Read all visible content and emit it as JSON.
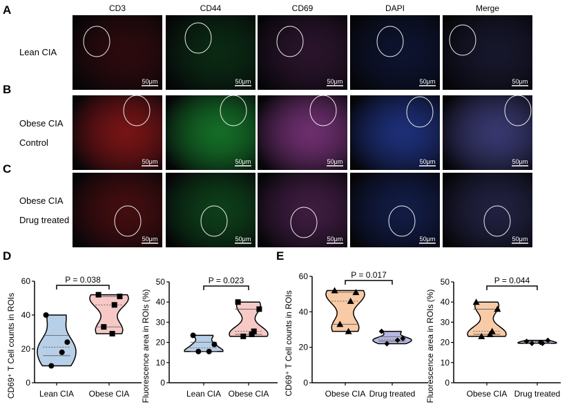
{
  "panel_letters": {
    "A": "A",
    "B": "B",
    "C": "C",
    "D": "D",
    "E": "E"
  },
  "columns": [
    "CD3",
    "CD44",
    "CD69",
    "DAPI",
    "Merge"
  ],
  "rows": [
    {
      "label_lines": [
        "Lean  CIA"
      ]
    },
    {
      "label_lines": [
        "Obese CIA",
        "Control"
      ]
    },
    {
      "label_lines": [
        "Obese CIA",
        "Drug treated"
      ]
    }
  ],
  "scale_bar": "50μm",
  "channel_colors": {
    "CD3": "#d02020",
    "CD44": "#20c040",
    "CD69": "#c050c0",
    "DAPI": "#3050d0",
    "Merge": "#6060c0"
  },
  "chart_data": [
    {
      "type": "violin",
      "panel": "D",
      "ylabel": "CD69⁺ T Cell counts in ROIs",
      "ylim": [
        0,
        60
      ],
      "yticks": [
        0,
        20,
        40,
        60
      ],
      "categories": [
        "Lean CIA",
        "Obese CIA"
      ],
      "pvalue": "P = 0.038",
      "series": [
        {
          "values": [
            40,
            24,
            18,
            10
          ],
          "marker": "circle",
          "color": "#b8cfe8"
        },
        {
          "values": [
            52,
            51,
            46,
            33,
            29
          ],
          "marker": "square",
          "color": "#f6c9c6"
        }
      ]
    },
    {
      "type": "violin",
      "panel": "D",
      "ylabel": "Fluorescence area in ROIs (%)",
      "ylim": [
        0,
        50
      ],
      "yticks": [
        0,
        10,
        20,
        30,
        40,
        50
      ],
      "categories": [
        "Lean CIA",
        "Obese CIA"
      ],
      "pvalue": "P = 0.023",
      "series": [
        {
          "values": [
            23.5,
            19,
            15.5,
            15.5
          ],
          "marker": "circle",
          "color": "#b8cfe8"
        },
        {
          "values": [
            40,
            36.5,
            25.5,
            23,
            24
          ],
          "marker": "square",
          "color": "#f6c9c6"
        }
      ]
    },
    {
      "type": "violin",
      "panel": "E",
      "ylabel": "CD69⁺ T Cell counts in ROIs",
      "ylim": [
        0,
        60
      ],
      "yticks": [
        0,
        20,
        40,
        60
      ],
      "categories": [
        "Obese CIA",
        "Drug treated"
      ],
      "pvalue": "P = 0.017",
      "series": [
        {
          "values": [
            52,
            51,
            46,
            33,
            29
          ],
          "marker": "triangle",
          "color": "#f8cba6"
        },
        {
          "values": [
            29,
            25,
            24,
            22
          ],
          "marker": "diamond",
          "color": "#b7b9e0"
        }
      ]
    },
    {
      "type": "violin",
      "panel": "E",
      "ylabel": "Fluorescence area in ROIs (%)",
      "ylim": [
        0,
        50
      ],
      "yticks": [
        0,
        10,
        20,
        30,
        40,
        50
      ],
      "categories": [
        "Obese CIA",
        "Drug treated"
      ],
      "pvalue": "P = 0.044",
      "series": [
        {
          "values": [
            40,
            36.5,
            25.5,
            23,
            24
          ],
          "marker": "triangle",
          "color": "#f8cba6"
        },
        {
          "values": [
            20.5,
            21,
            19.5,
            19.5,
            20
          ],
          "marker": "diamond",
          "color": "#b7b9e0"
        }
      ]
    }
  ]
}
